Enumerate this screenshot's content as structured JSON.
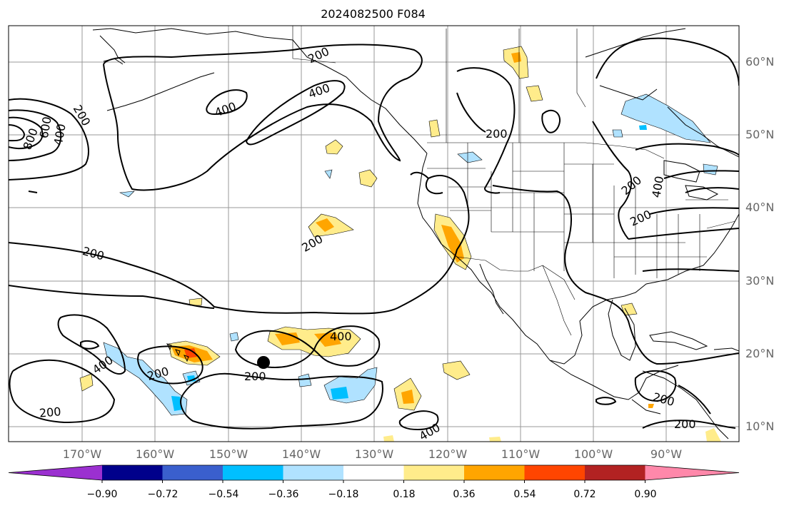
{
  "title": "2024082500 F084",
  "map": {
    "projection": "PlateCarree",
    "lon_range": [
      -180,
      -80
    ],
    "lat_range": [
      8,
      65
    ],
    "gridlines": true,
    "coastlines": true,
    "borders": true,
    "storm_marker": {
      "lon": -145,
      "lat": 18.8
    }
  },
  "lat_labels": [
    "60°N",
    "50°N",
    "40°N",
    "30°N",
    "20°N",
    "10°N"
  ],
  "lon_labels": [
    "170°W",
    "160°W",
    "150°W",
    "140°W",
    "130°W",
    "120°W",
    "110°W",
    "100°W",
    "90°W"
  ],
  "contour_labels": [
    "200",
    "400",
    "600",
    "800"
  ],
  "colorbar": {
    "ticks": [
      "−0.90",
      "−0.72",
      "−0.54",
      "−0.36",
      "−0.18",
      "0.18",
      "0.36",
      "0.54",
      "0.72",
      "0.90"
    ],
    "colors": [
      "#9b30d0",
      "#00008b",
      "#3a5fcd",
      "#00bfff",
      "#b0e2ff",
      "#ffffff",
      "#ffec8b",
      "#ffa500",
      "#ff4500",
      "#b22222",
      "#ff88aa"
    ],
    "extend": "both"
  }
}
